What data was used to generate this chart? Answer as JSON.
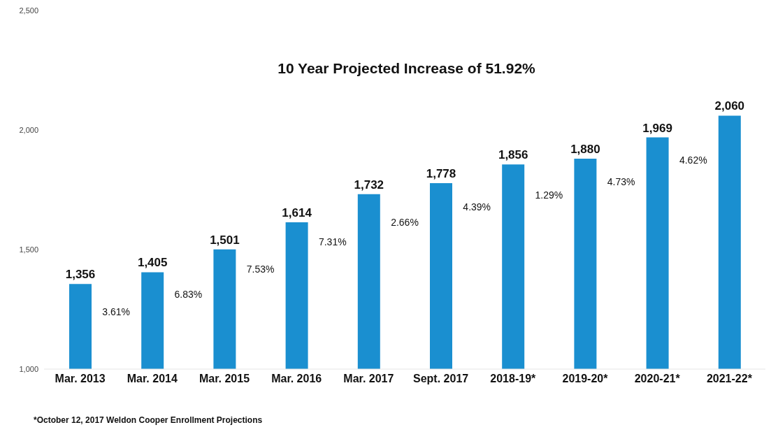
{
  "chart_data": {
    "type": "bar",
    "title": "10 Year Projected Increase of 51.92%",
    "categories": [
      "Mar. 2013",
      "Mar. 2014",
      "Mar. 2015",
      "Mar. 2016",
      "Mar. 2017",
      "Sept. 2017",
      "2018-19*",
      "2019-20*",
      "2020-21*",
      "2021-22*"
    ],
    "values": [
      1356,
      1405,
      1501,
      1614,
      1732,
      1778,
      1856,
      1880,
      1969,
      2060
    ],
    "value_labels": [
      "1,356",
      "1,405",
      "1,501",
      "1,614",
      "1,732",
      "1,778",
      "1,856",
      "1,880",
      "1,969",
      "2,060"
    ],
    "color": "#1a8fd0",
    "ylim": [
      1000,
      2500
    ],
    "yticks": [
      {
        "value": 1000,
        "label": "1,000"
      },
      {
        "value": 1500,
        "label": "1,500"
      },
      {
        "value": 2000,
        "label": "2,000"
      },
      {
        "value": 2500,
        "label": "2,500"
      }
    ],
    "annotations": [
      "3.61%",
      "6.83%",
      "7.53%",
      "7.31%",
      "2.66%",
      "4.39%",
      "1.29%",
      "4.73%",
      "4.62%",
      "*October 12, 2017 Weldon Cooper Enrollment Projections"
    ]
  }
}
